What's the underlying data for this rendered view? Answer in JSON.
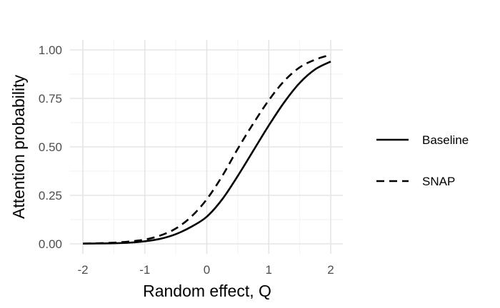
{
  "chart_data": {
    "type": "line",
    "title": "",
    "xlabel": "Random effect, Q",
    "ylabel": "Attention probability",
    "xlim": [
      -2,
      2
    ],
    "ylim": [
      0,
      1
    ],
    "x_ticks": [
      -2,
      -1,
      0,
      1,
      2
    ],
    "y_ticks": [
      0.0,
      0.25,
      0.5,
      0.75,
      1.0
    ],
    "x_tick_labels": [
      "-2",
      "-1",
      "0",
      "1",
      "2"
    ],
    "y_tick_labels": [
      "0.00",
      "0.25",
      "0.50",
      "0.75",
      "1.00"
    ],
    "grid": true,
    "legend_position": "right",
    "x": [
      -2.0,
      -1.75,
      -1.5,
      -1.25,
      -1.0,
      -0.75,
      -0.5,
      -0.25,
      0.0,
      0.25,
      0.5,
      0.75,
      1.0,
      1.25,
      1.5,
      1.75,
      2.0
    ],
    "series": [
      {
        "name": "Baseline",
        "line_style": "solid",
        "color": "#000000",
        "values": [
          0.001,
          0.002,
          0.003,
          0.006,
          0.013,
          0.026,
          0.05,
          0.088,
          0.14,
          0.23,
          0.35,
          0.48,
          0.61,
          0.73,
          0.83,
          0.9,
          0.94
        ]
      },
      {
        "name": "SNAP",
        "line_style": "dashed",
        "color": "#000000",
        "values": [
          0.001,
          0.003,
          0.006,
          0.012,
          0.022,
          0.043,
          0.079,
          0.14,
          0.23,
          0.35,
          0.49,
          0.62,
          0.74,
          0.84,
          0.91,
          0.95,
          0.975
        ]
      }
    ]
  }
}
